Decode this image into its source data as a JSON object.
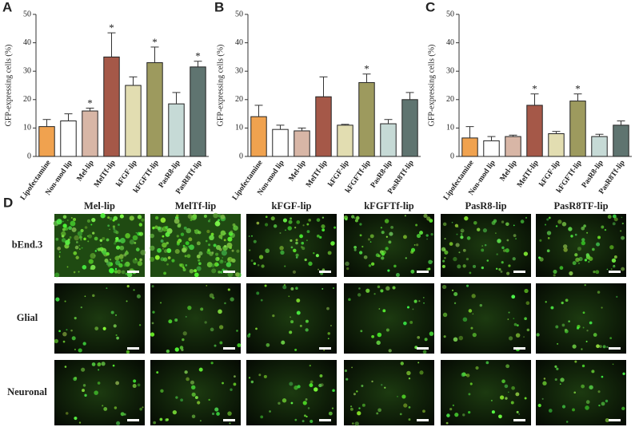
{
  "chart_data": [
    {
      "type": "bar",
      "label": "A",
      "ylabel": "GFP-expressing cells (%)",
      "categories": [
        "Lipofectamine",
        "Non-mod lip",
        "Mel-lip",
        "MelTf-lip",
        "kFGF-lip",
        "kFGFTf-lip",
        "PasR8-lip",
        "PasR8Tf-lip"
      ],
      "values": [
        10.5,
        12.5,
        16,
        35,
        25,
        33,
        18.5,
        31.5
      ],
      "errors": [
        2.5,
        2.5,
        1,
        8.5,
        3,
        5.5,
        4,
        2
      ],
      "significance": [
        null,
        null,
        "*",
        "*",
        null,
        "*",
        null,
        "*"
      ],
      "colors": [
        "#f0a24f",
        "#ffffff",
        "#d8b6a6",
        "#a55848",
        "#e2ddb1",
        "#9d9a5e",
        "#c6dad6",
        "#5f7470"
      ],
      "ylim": [
        0,
        50
      ],
      "yticks": [
        0,
        10,
        20,
        30,
        40,
        50
      ]
    },
    {
      "type": "bar",
      "label": "B",
      "ylabel": "GFP-expressing cells (%)",
      "categories": [
        "Lipofectamine",
        "Non-mod lip",
        "Mel-lip",
        "MelTf-lip",
        "kFGF-lip",
        "kFGFTf-lip",
        "PasR8-lip",
        "PasR8Tf-lip"
      ],
      "values": [
        14,
        9.5,
        9,
        21,
        11,
        26,
        11.5,
        20
      ],
      "errors": [
        4,
        1.5,
        1,
        7,
        0.3,
        3,
        1.5,
        2.5
      ],
      "significance": [
        null,
        null,
        null,
        null,
        null,
        "*",
        null,
        null
      ],
      "colors": [
        "#f0a24f",
        "#ffffff",
        "#d8b6a6",
        "#a55848",
        "#e2ddb1",
        "#9d9a5e",
        "#c6dad6",
        "#5f7470"
      ],
      "ylim": [
        0,
        50
      ],
      "yticks": [
        0,
        10,
        20,
        30,
        40,
        50
      ]
    },
    {
      "type": "bar",
      "label": "C",
      "ylabel": "GFP-expressing cells (%)",
      "categories": [
        "Lipofectamine",
        "Non-mod lip",
        "Mel-lip",
        "MelTf-lip",
        "kFGF-lip",
        "kFGFTf-lip",
        "PasR8-lip",
        "PasR8Tf-lip"
      ],
      "values": [
        6.5,
        5.5,
        7,
        18,
        8,
        19.5,
        7,
        11
      ],
      "errors": [
        4,
        1.5,
        0.5,
        4,
        0.8,
        2.5,
        0.8,
        1.5
      ],
      "significance": [
        null,
        null,
        null,
        "*",
        null,
        "*",
        null,
        null
      ],
      "colors": [
        "#f0a24f",
        "#ffffff",
        "#d8b6a6",
        "#a55848",
        "#e2ddb1",
        "#9d9a5e",
        "#c6dad6",
        "#5f7470"
      ],
      "ylim": [
        0,
        50
      ],
      "yticks": [
        0,
        10,
        20,
        30,
        40,
        50
      ]
    }
  ],
  "panel_d": {
    "label": "D",
    "columns": [
      "Mel-lip",
      "MelTf-lip",
      "kFGF-lip",
      "kFGFTf-lip",
      "PasR8-lip",
      "PasR8TF-lip"
    ],
    "rows": [
      "bEnd.3",
      "Glial",
      "Neuronal"
    ]
  }
}
